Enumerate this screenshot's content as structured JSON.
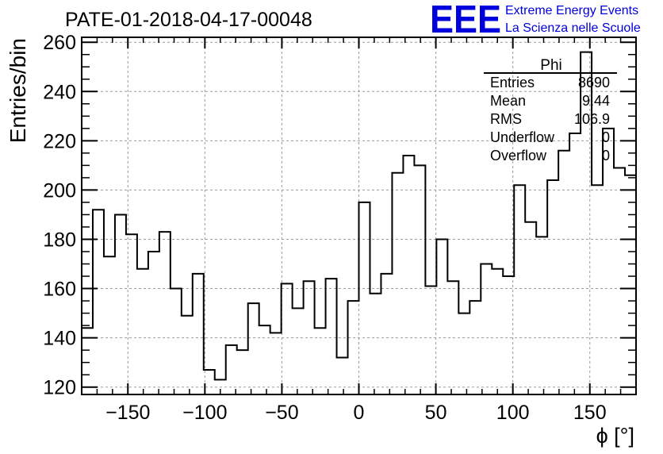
{
  "chart_data": {
    "type": "histogram",
    "title": "PATE-01-2018-04-17-00048",
    "xlabel": "ϕ [°]",
    "ylabel": "Entries/bin",
    "xlim": [
      -180,
      180
    ],
    "ylim": [
      117,
      262
    ],
    "bin_width": 7.2,
    "x_ticks": [
      -150,
      -100,
      -50,
      0,
      50,
      100,
      150
    ],
    "x_tick_labels": [
      "−150",
      "−100",
      "−50",
      "0",
      "50",
      "100",
      "150"
    ],
    "y_ticks": [
      120,
      140,
      160,
      180,
      200,
      220,
      240,
      260
    ],
    "y_tick_labels": [
      "120",
      "140",
      "160",
      "180",
      "200",
      "220",
      "240",
      "260"
    ],
    "grid": true,
    "values": [
      144,
      192,
      173,
      190,
      182,
      168,
      175,
      183,
      160,
      149,
      166,
      127,
      123,
      137,
      135,
      154,
      145,
      142,
      162,
      152,
      163,
      144,
      164,
      132,
      155,
      195,
      158,
      166,
      207,
      214,
      210,
      161,
      180,
      163,
      150,
      155,
      170,
      168,
      165,
      202,
      187,
      181,
      204,
      216,
      223,
      256,
      202,
      225,
      209,
      206
    ]
  },
  "stats_box": {
    "title": "Phi",
    "rows": [
      {
        "label": "Entries",
        "value": "8690"
      },
      {
        "label": "Mean",
        "value": "9.44"
      },
      {
        "label": "RMS",
        "value": "106.9"
      },
      {
        "label": "Underflow",
        "value": "0"
      },
      {
        "label": "Overflow",
        "value": "0"
      }
    ]
  },
  "logo": {
    "mark": "EEE",
    "line1": "Extreme Energy Events",
    "line2": "La Scienza nelle Scuole",
    "color": "#0000dd"
  },
  "colors": {
    "line": "#000000",
    "grid": "#9a9a9a",
    "logo": "#0000dd"
  }
}
